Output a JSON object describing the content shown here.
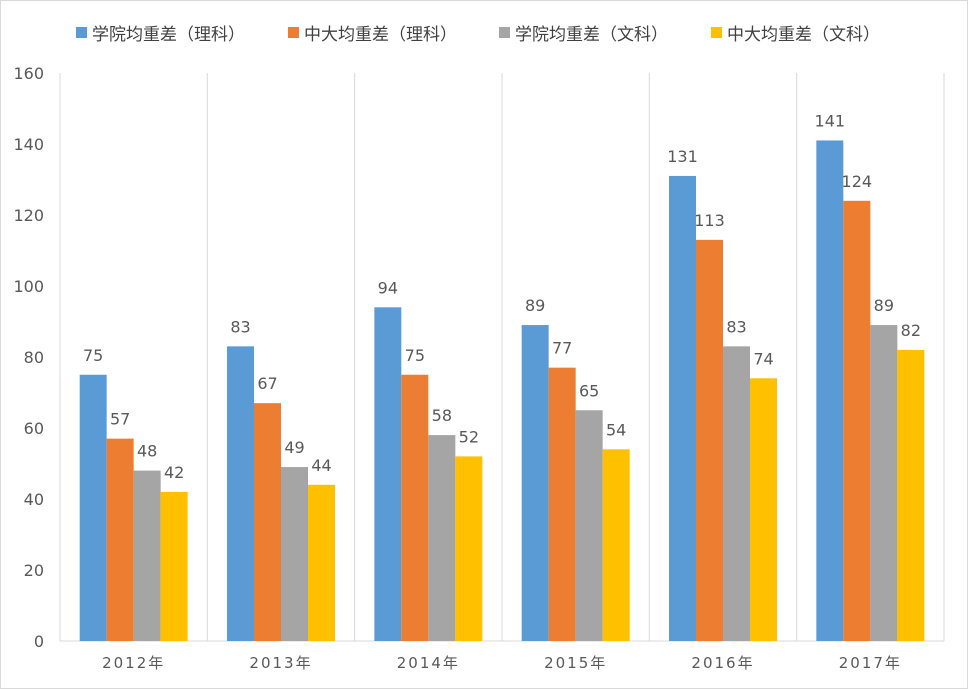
{
  "chart_data": {
    "type": "bar",
    "categories": [
      "2012年",
      "2013年",
      "2014年",
      "2015年",
      "2016年",
      "2017年"
    ],
    "series": [
      {
        "name": "学院均重差（理科）",
        "color": "#5b9bd5",
        "values": [
          75,
          83,
          94,
          89,
          131,
          141
        ]
      },
      {
        "name": "中大均重差（理科）",
        "color": "#ed7d31",
        "values": [
          57,
          67,
          75,
          77,
          113,
          124
        ]
      },
      {
        "name": "学院均重差（文科）",
        "color": "#a5a5a5",
        "values": [
          48,
          49,
          58,
          65,
          83,
          89
        ]
      },
      {
        "name": "中大均重差（文科）",
        "color": "#ffc000",
        "values": [
          42,
          44,
          52,
          54,
          74,
          82
        ]
      }
    ],
    "ylim": [
      0,
      160
    ],
    "yticks": [
      0,
      20,
      40,
      60,
      80,
      100,
      120,
      140,
      160
    ],
    "grid": "vertical category separators",
    "legend": "top",
    "data_labels": true
  }
}
